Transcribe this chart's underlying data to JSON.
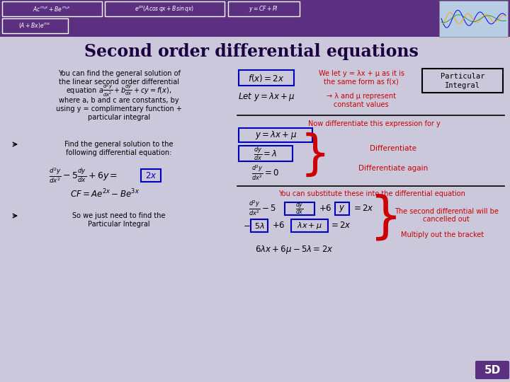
{
  "title": "Second order differential equations",
  "bg_color": "#cbc8dc",
  "header_bg": "#5c3080",
  "slide_num": "5D",
  "red_color": "#cc0000",
  "blue_box_color": "#0000bb",
  "text_color": "#000000",
  "header_text_color": "#ffffff",
  "title_color": "#1a0040",
  "right_top_text1": "We let y = λx + μ as it is",
  "right_top_text2": "the same form as f(x)",
  "right_top_text3": "→ λ and μ represent",
  "right_top_text4": "constant values",
  "diff_section_title": "Now differentiate this expression for y",
  "diff_label1": "Differentiate",
  "diff_label2": "Differentiate again",
  "sub_title": "You can substitute these into the differential equation",
  "cancel_text1": "The second differential will be",
  "cancel_text2": "cancelled out",
  "multiply_text": "Multiply out the bracket"
}
